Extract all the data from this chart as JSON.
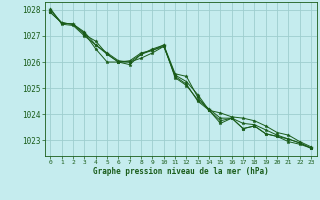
{
  "background_color": "#c5ecee",
  "plot_bg_color": "#c5ecee",
  "grid_color": "#9ecece",
  "line_color": "#1a5c1a",
  "marker_color": "#1a5c1a",
  "xlabel": "Graphe pression niveau de la mer (hPa)",
  "ylim": [
    1022.4,
    1028.3
  ],
  "xlim": [
    -0.5,
    23.5
  ],
  "yticks": [
    1023,
    1024,
    1025,
    1026,
    1027,
    1028
  ],
  "xticks": [
    0,
    1,
    2,
    3,
    4,
    5,
    6,
    7,
    8,
    9,
    10,
    11,
    12,
    13,
    14,
    15,
    16,
    17,
    18,
    19,
    20,
    21,
    22,
    23
  ],
  "series": [
    [
      1027.9,
      1027.5,
      1027.45,
      1027.05,
      1026.8,
      1026.3,
      1026.0,
      1026.05,
      1026.35,
      1026.45,
      1026.65,
      1025.55,
      1025.45,
      1024.65,
      1024.15,
      1024.05,
      1023.9,
      1023.85,
      1023.75,
      1023.55,
      1023.3,
      1023.2,
      1022.95,
      1022.75
    ],
    [
      1027.9,
      1027.5,
      1027.45,
      1027.15,
      1026.65,
      1026.35,
      1026.05,
      1026.0,
      1026.3,
      1026.5,
      1026.65,
      1025.4,
      1025.1,
      1024.55,
      1024.2,
      1023.85,
      1023.85,
      1023.65,
      1023.6,
      1023.4,
      1023.2,
      1023.05,
      1022.9,
      1022.7
    ],
    [
      1028.0,
      1027.5,
      1027.45,
      1027.1,
      1026.5,
      1026.0,
      1026.0,
      1026.0,
      1026.15,
      1026.35,
      1026.6,
      1025.45,
      1025.15,
      1024.5,
      1024.15,
      1023.65,
      1023.85,
      1023.45,
      1023.55,
      1023.25,
      1023.15,
      1022.95,
      1022.85,
      1022.7
    ],
    [
      1028.05,
      1027.45,
      1027.4,
      1027.0,
      1026.65,
      1026.3,
      1026.0,
      1025.9,
      1026.3,
      1026.45,
      1026.6,
      1025.5,
      1025.25,
      1024.75,
      1024.15,
      1023.75,
      1023.85,
      1023.45,
      1023.55,
      1023.25,
      1023.15,
      1023.05,
      1022.9,
      1022.7
    ]
  ]
}
